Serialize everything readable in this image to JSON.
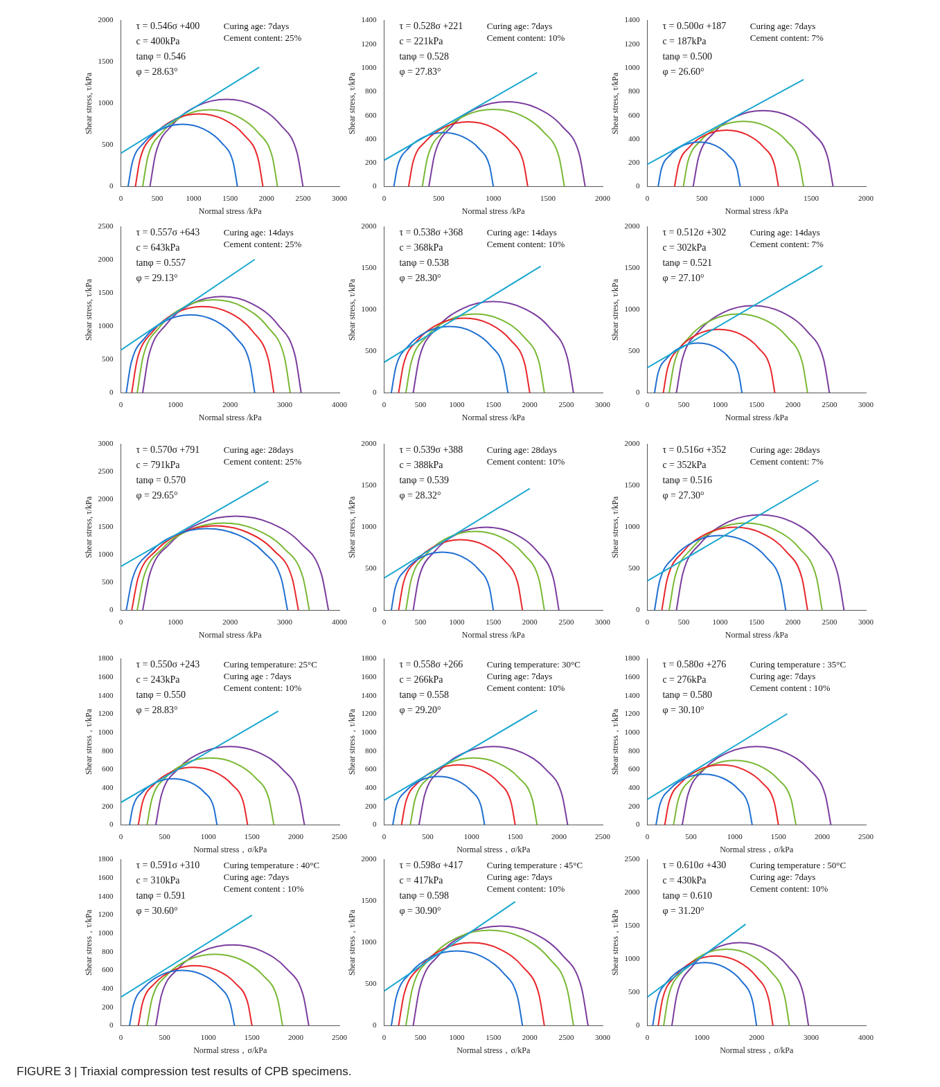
{
  "chart_data": [
    {
      "type": "line",
      "xlabel": "Normal stress /kPa",
      "ylabel": "Shear stress, τ/kPa",
      "xlim": [
        0,
        3000
      ],
      "xticks": [
        0,
        500,
        1000,
        1500,
        2000,
        2500,
        3000
      ],
      "ylim": [
        0,
        2000
      ],
      "yticks": [
        0,
        500,
        1000,
        1500,
        2000
      ],
      "annotations": [
        "τ = 0.546σ +400",
        "c = 400kPa",
        "tanφ = 0.546",
        "φ = 28.63°",
        "Curing age: 7days",
        "Cement content: 25%"
      ],
      "series": [
        {
          "color": "#1aa7cf",
          "x": [
            0,
            1900
          ],
          "values": [
            400,
            1437
          ]
        },
        {
          "color": "#1f6fd1",
          "x": [
            100,
            157,
            320,
            563,
            850,
            1137,
            1380,
            1543,
            1600
          ],
          "values": [
            0,
            287,
            530,
            693,
            750,
            693,
            530,
            287,
            0
          ]
        },
        {
          "color": "#e8262a",
          "x": [
            200,
            266,
            456,
            740,
            1075,
            1410,
            1694,
            1884,
            1950
          ],
          "values": [
            0,
            335,
            619,
            809,
            875,
            809,
            619,
            335,
            0
          ]
        },
        {
          "color": "#78b833",
          "x": [
            300,
            370,
            571,
            871,
            1225,
            1579,
            1879,
            2080,
            2150
          ],
          "values": [
            0,
            354,
            654,
            855,
            925,
            855,
            654,
            354,
            0
          ]
        },
        {
          "color": "#7a3c9e",
          "x": [
            400,
            480,
            708,
            1048,
            1450,
            1852,
            2192,
            2420,
            2500
          ],
          "values": [
            0,
            402,
            742,
            970,
            1050,
            970,
            742,
            402,
            0
          ]
        }
      ]
    },
    {
      "type": "line",
      "xlabel": "Normal stress /kPa",
      "ylabel": "Shear stress, τ/kPa",
      "xlim": [
        0,
        2000
      ],
      "xticks": [
        0,
        500,
        1000,
        1500,
        2000
      ],
      "ylim": [
        0,
        1400
      ],
      "yticks": [
        0,
        200,
        400,
        600,
        800,
        1000,
        1200,
        1400
      ],
      "annotations": [
        "τ = 0.528σ +221",
        "c = 221kPa",
        "tanφ = 0.528",
        "φ = 27.83°",
        "Curing age: 7days",
        "Cement content: 10%"
      ],
      "series": [
        {
          "color": "#1aa7cf",
          "x": [
            0,
            1400
          ],
          "values": [
            221,
            960
          ]
        },
        {
          "color": "#1f6fd1",
          "x": [
            90,
            125,
            223,
            371,
            545,
            719,
            867,
            965,
            1000
          ],
          "values": [
            0,
            174,
            322,
            420,
            455,
            420,
            322,
            174,
            0
          ]
        },
        {
          "color": "#e8262a",
          "x": [
            225,
            266,
            385,
            561,
            770,
            979,
            1155,
            1274,
            1315
          ],
          "values": [
            0,
            209,
            385,
            504,
            545,
            504,
            385,
            209,
            0
          ]
        },
        {
          "color": "#78b833",
          "x": [
            350,
            399,
            540,
            751,
            1000,
            1249,
            1460,
            1601,
            1650
          ],
          "values": [
            0,
            249,
            460,
            601,
            650,
            601,
            460,
            249,
            0
          ]
        },
        {
          "color": "#7a3c9e",
          "x": [
            410,
            464,
            619,
            851,
            1125,
            1399,
            1631,
            1786,
            1840
          ],
          "values": [
            0,
            274,
            506,
            661,
            715,
            661,
            506,
            274,
            0
          ]
        }
      ]
    },
    {
      "type": "line",
      "xlabel": "Normal stress /kPa",
      "ylabel": "Shear stress, τ/kPa",
      "xlim": [
        0,
        2000
      ],
      "xticks": [
        0,
        500,
        1000,
        1500,
        2000
      ],
      "ylim": [
        0,
        1400
      ],
      "yticks": [
        0,
        200,
        400,
        600,
        800,
        1000,
        1200,
        1400
      ],
      "annotations": [
        "τ = 0.500σ +187",
        "c = 187kPa",
        "tanφ = 0.500",
        "φ = 26.60°",
        "Curing age: 7days",
        "Cement content: 7%"
      ],
      "series": [
        {
          "color": "#1aa7cf",
          "x": [
            0,
            1430
          ],
          "values": [
            187,
            902
          ]
        },
        {
          "color": "#1f6fd1",
          "x": [
            100,
            128,
            210,
            331,
            475,
            619,
            740,
            822,
            850
          ],
          "values": [
            0,
            144,
            265,
            347,
            375,
            347,
            265,
            144,
            0
          ]
        },
        {
          "color": "#e8262a",
          "x": [
            250,
            286,
            389,
            543,
            725,
            907,
            1061,
            1164,
            1200
          ],
          "values": [
            0,
            182,
            336,
            439,
            475,
            439,
            336,
            182,
            0
          ]
        },
        {
          "color": "#78b833",
          "x": [
            330,
            372,
            491,
            669,
            880,
            1091,
            1269,
            1388,
            1430
          ],
          "values": [
            0,
            211,
            389,
            508,
            550,
            508,
            389,
            211,
            0
          ]
        },
        {
          "color": "#7a3c9e",
          "x": [
            420,
            469,
            608,
            815,
            1060,
            1305,
            1512,
            1651,
            1700
          ],
          "values": [
            0,
            245,
            452,
            591,
            640,
            591,
            452,
            245,
            0
          ]
        }
      ]
    },
    {
      "type": "line",
      "xlabel": "Normal stress /kPa",
      "ylabel": "Shear stress, τ/kPa",
      "xlim": [
        0,
        4000
      ],
      "xticks": [
        0,
        1000,
        2000,
        3000,
        4000
      ],
      "ylim": [
        0,
        2500
      ],
      "yticks": [
        0,
        500,
        1000,
        1500,
        2000,
        2500
      ],
      "annotations": [
        "τ = 0.557σ +643",
        "c = 643kPa",
        "tanφ = 0.557",
        "φ = 29.13°",
        "Curing age: 14days",
        "Cement content: 25%"
      ],
      "series": [
        {
          "color": "#1aa7cf",
          "x": [
            0,
            2450
          ],
          "values": [
            643,
            2008
          ]
        },
        {
          "color": "#1f6fd1",
          "x": [
            100,
            189,
            444,
            825,
            1275,
            1725,
            2106,
            2361,
            2450
          ],
          "values": [
            0,
            450,
            831,
            1086,
            1175,
            1086,
            831,
            450,
            0
          ]
        },
        {
          "color": "#e8262a",
          "x": [
            200,
            299,
            581,
            1002,
            1500,
            1998,
            2419,
            2701,
            2800
          ],
          "values": [
            0,
            498,
            919,
            1201,
            1300,
            1201,
            919,
            498,
            0
          ]
        },
        {
          "color": "#78b833",
          "x": [
            300,
            406,
            710,
            1164,
            1700,
            2236,
            2690,
            2994,
            3100
          ],
          "values": [
            0,
            536,
            990,
            1294,
            1400,
            1294,
            990,
            536,
            0
          ]
        },
        {
          "color": "#7a3c9e",
          "x": [
            400,
            510,
            825,
            1295,
            1850,
            2405,
            2875,
            3190,
            3300
          ],
          "values": [
            0,
            555,
            1025,
            1340,
            1450,
            1340,
            1025,
            555,
            0
          ]
        }
      ]
    },
    {
      "type": "line",
      "xlabel": "Normal stress /kPa",
      "ylabel": "Shear stress, τ/kPa",
      "xlim": [
        0,
        3000
      ],
      "xticks": [
        0,
        500,
        1000,
        1500,
        2000,
        2500,
        3000
      ],
      "ylim": [
        0,
        2000
      ],
      "yticks": [
        0,
        500,
        1000,
        1500,
        2000
      ],
      "annotations": [
        "τ = 0.538σ +368",
        "c = 368kPa",
        "tanφ = 0.538",
        "φ = 28.30°",
        "Curing age: 14days",
        "Cement content: 10%"
      ],
      "series": [
        {
          "color": "#1aa7cf",
          "x": [
            0,
            2150
          ],
          "values": [
            368,
            1525
          ]
        },
        {
          "color": "#1f6fd1",
          "x": [
            100,
            161,
            334,
            594,
            900,
            1206,
            1466,
            1639,
            1700
          ],
          "values": [
            0,
            306,
            566,
            739,
            800,
            739,
            566,
            306,
            0
          ]
        },
        {
          "color": "#e8262a",
          "x": [
            200,
            268,
            464,
            755,
            1100,
            1445,
            1736,
            1932,
            2000
          ],
          "values": [
            0,
            345,
            636,
            832,
            900,
            832,
            636,
            345,
            0
          ]
        },
        {
          "color": "#78b833",
          "x": [
            300,
            372,
            578,
            886,
            1250,
            1614,
            1922,
            2128,
            2200
          ],
          "values": [
            0,
            364,
            672,
            878,
            950,
            878,
            672,
            364,
            0
          ]
        },
        {
          "color": "#7a3c9e",
          "x": [
            400,
            484,
            722,
            1079,
            1500,
            1921,
            2278,
            2516,
            2600
          ],
          "values": [
            0,
            421,
            778,
            1016,
            1100,
            1016,
            778,
            421,
            0
          ]
        }
      ]
    },
    {
      "type": "line",
      "xlabel": "Normal stress /kPa",
      "ylabel": "Shear stress, τ/kPa",
      "xlim": [
        0,
        3000
      ],
      "xticks": [
        0,
        500,
        1000,
        1500,
        2000,
        2500,
        3000
      ],
      "ylim": [
        0,
        2000
      ],
      "yticks": [
        0,
        500,
        1000,
        1500,
        2000
      ],
      "annotations": [
        "τ = 0.512σ +302",
        "c = 302kPa",
        "tanφ = 0.521",
        "φ = 27.10°",
        "Curing age: 14days",
        "Cement content: 7%"
      ],
      "series": [
        {
          "color": "#1aa7cf",
          "x": [
            0,
            2400
          ],
          "values": [
            302,
            1531
          ]
        },
        {
          "color": "#1f6fd1",
          "x": [
            100,
            146,
            276,
            470,
            700,
            930,
            1124,
            1254,
            1300
          ],
          "values": [
            0,
            230,
            424,
            554,
            600,
            554,
            424,
            230,
            0
          ]
        },
        {
          "color": "#e8262a",
          "x": [
            220,
            278,
            444,
            692,
            985,
            1278,
            1526,
            1692,
            1750
          ],
          "values": [
            0,
            293,
            541,
            707,
            765,
            707,
            541,
            293,
            0
          ]
        },
        {
          "color": "#78b833",
          "x": [
            300,
            372,
            578,
            886,
            1250,
            1614,
            1922,
            2128,
            2200
          ],
          "values": [
            0,
            364,
            672,
            878,
            950,
            878,
            672,
            364,
            0
          ]
        },
        {
          "color": "#7a3c9e",
          "x": [
            400,
            480,
            708,
            1048,
            1450,
            1852,
            2192,
            2420,
            2500
          ],
          "values": [
            0,
            402,
            742,
            970,
            1050,
            970,
            742,
            402,
            0
          ]
        }
      ]
    },
    {
      "type": "line",
      "xlabel": "Normal stress /kPa",
      "ylabel": "Shear stress, τ/kPa",
      "xlim": [
        0,
        4000
      ],
      "xticks": [
        0,
        1000,
        2000,
        3000,
        4000
      ],
      "ylim": [
        0,
        3000
      ],
      "yticks": [
        0,
        500,
        1000,
        1500,
        2000,
        2500,
        3000
      ],
      "annotations": [
        "τ = 0.570σ +791",
        "c = 791kPa",
        "tanφ = 0.570",
        "φ = 29.65°",
        "Curing age: 28days",
        "Cement content: 25%"
      ],
      "series": [
        {
          "color": "#1aa7cf",
          "x": [
            0,
            2700
          ],
          "values": [
            791,
            2330
          ]
        },
        {
          "color": "#1f6fd1",
          "x": [
            100,
            212,
            532,
            1010,
            1575,
            2140,
            2618,
            2938,
            3050
          ],
          "values": [
            0,
            565,
            1043,
            1363,
            1475,
            1363,
            1043,
            565,
            0
          ]
        },
        {
          "color": "#e8262a",
          "x": [
            200,
            316,
            647,
            1141,
            1725,
            2309,
            2803,
            3134,
            3250
          ],
          "values": [
            0,
            584,
            1078,
            1409,
            1525,
            1409,
            1078,
            584,
            0
          ]
        },
        {
          "color": "#78b833",
          "x": [
            300,
            420,
            761,
            1272,
            1875,
            2478,
            2989,
            3330,
            3450
          ],
          "values": [
            0,
            603,
            1114,
            1455,
            1575,
            1455,
            1114,
            603,
            0
          ]
        },
        {
          "color": "#7a3c9e",
          "x": [
            400,
            529,
            898,
            1449,
            2100,
            2751,
            3302,
            3671,
            3800
          ],
          "values": [
            0,
            651,
            1202,
            1571,
            1700,
            1571,
            1202,
            651,
            0
          ]
        }
      ]
    },
    {
      "type": "line",
      "xlabel": "Normal stress /kPa",
      "ylabel": "Shear stress, τ/kPa",
      "xlim": [
        0,
        3000
      ],
      "xticks": [
        0,
        500,
        1000,
        1500,
        2000,
        2500,
        3000
      ],
      "ylim": [
        0,
        2000
      ],
      "yticks": [
        0,
        500,
        1000,
        1500,
        2000
      ],
      "annotations": [
        "τ = 0.539σ +388",
        "c = 388kPa",
        "tanφ = 0.539",
        "φ = 28.32°",
        "Curing age: 28days",
        "Cement content: 10%"
      ],
      "series": [
        {
          "color": "#1aa7cf",
          "x": [
            0,
            2000
          ],
          "values": [
            388,
            1466
          ]
        },
        {
          "color": "#1f6fd1",
          "x": [
            100,
            153,
            305,
            532,
            800,
            1068,
            1295,
            1447,
            1500
          ],
          "values": [
            0,
            268,
            495,
            647,
            700,
            647,
            495,
            268,
            0
          ]
        },
        {
          "color": "#e8262a",
          "x": [
            200,
            265,
            449,
            724,
            1050,
            1376,
            1651,
            1835,
            1900
          ],
          "values": [
            0,
            326,
            601,
            785,
            850,
            785,
            601,
            326,
            0
          ]
        },
        {
          "color": "#78b833",
          "x": [
            300,
            372,
            578,
            886,
            1250,
            1614,
            1922,
            2128,
            2200
          ],
          "values": [
            0,
            364,
            672,
            878,
            950,
            878,
            672,
            364,
            0
          ]
        },
        {
          "color": "#7a3c9e",
          "x": [
            400,
            476,
            693,
            1017,
            1400,
            1783,
            2107,
            2324,
            2400
          ],
          "values": [
            0,
            383,
            707,
            924,
            1000,
            924,
            707,
            383,
            0
          ]
        }
      ]
    },
    {
      "type": "line",
      "xlabel": "Normal stress /kPa",
      "ylabel": "Shear stress, τ/kPa",
      "xlim": [
        0,
        3000
      ],
      "xticks": [
        0,
        500,
        1000,
        1500,
        2000,
        2500,
        3000
      ],
      "ylim": [
        0,
        2000
      ],
      "yticks": [
        0,
        500,
        1000,
        1500,
        2000
      ],
      "annotations": [
        "τ = 0.516σ +352",
        "c = 352kPa",
        "tanφ = 0.516",
        "φ = 27.30°",
        "Curing age: 28days",
        "Cement content: 7%"
      ],
      "series": [
        {
          "color": "#1aa7cf",
          "x": [
            0,
            2350
          ],
          "values": [
            352,
            1565
          ]
        },
        {
          "color": "#1f6fd1",
          "x": [
            100,
            168,
            364,
            655,
            1000,
            1345,
            1636,
            1832,
            1900
          ],
          "values": [
            0,
            345,
            636,
            832,
            900,
            832,
            636,
            345,
            0
          ]
        },
        {
          "color": "#e8262a",
          "x": [
            200,
            276,
            493,
            817,
            1200,
            1583,
            1907,
            2124,
            2200
          ],
          "values": [
            0,
            383,
            707,
            924,
            1000,
            924,
            707,
            383,
            0
          ]
        },
        {
          "color": "#78b833",
          "x": [
            300,
            380,
            608,
            948,
            1350,
            1752,
            2092,
            2320,
            2400
          ],
          "values": [
            0,
            402,
            742,
            970,
            1050,
            970,
            742,
            402,
            0
          ]
        },
        {
          "color": "#7a3c9e",
          "x": [
            400,
            487,
            737,
            1110,
            1550,
            1990,
            2363,
            2613,
            2700
          ],
          "values": [
            0,
            440,
            813,
            1063,
            1150,
            1063,
            813,
            440,
            0
          ]
        }
      ]
    },
    {
      "type": "line",
      "xlabel": "Normal stress，σ/kPa",
      "ylabel": "Shear stress，τ/kPa",
      "xlim": [
        0,
        2500
      ],
      "xticks": [
        0,
        500,
        1000,
        1500,
        2000,
        2500
      ],
      "ylim": [
        0,
        1800
      ],
      "yticks": [
        0,
        200,
        400,
        600,
        800,
        1000,
        1200,
        1400,
        1600,
        1800
      ],
      "annotations": [
        "τ = 0.550σ +243",
        "c = 243kPa",
        "tanφ = 0.550",
        "φ = 28.83°",
        "Curing temperature: 25°C",
        "Curing age : 7days",
        "Cement content: 10%"
      ],
      "series": [
        {
          "color": "#1aa7cf",
          "x": [
            0,
            1800
          ],
          "values": [
            243,
            1233
          ]
        },
        {
          "color": "#1f6fd1",
          "x": [
            100,
            138,
            246,
            409,
            600,
            792,
            954,
            1062,
            1100
          ],
          "values": [
            0,
            192,
            354,
            462,
            500,
            462,
            354,
            192,
            0
          ]
        },
        {
          "color": "#e8262a",
          "x": [
            200,
            247,
            383,
            586,
            825,
            1064,
            1267,
            1403,
            1450
          ],
          "values": [
            0,
            239,
            442,
            578,
            625,
            578,
            442,
            239,
            0
          ]
        },
        {
          "color": "#78b833",
          "x": [
            300,
            355,
            512,
            747,
            1025,
            1303,
            1538,
            1695,
            1750
          ],
          "values": [
            0,
            278,
            513,
            670,
            725,
            670,
            513,
            278,
            0
          ]
        },
        {
          "color": "#7a3c9e",
          "x": [
            400,
            465,
            649,
            924,
            1250,
            1576,
            1851,
            2035,
            2100
          ],
          "values": [
            0,
            326,
            601,
            785,
            850,
            785,
            601,
            326,
            0
          ]
        }
      ]
    },
    {
      "type": "line",
      "xlabel": "Normal stress，σ/kPa",
      "ylabel": "Shear stress，τ/kPa",
      "xlim": [
        0,
        2500
      ],
      "xticks": [
        0,
        500,
        1000,
        1500,
        2000,
        2500
      ],
      "ylim": [
        0,
        1800
      ],
      "yticks": [
        0,
        200,
        400,
        600,
        800,
        1000,
        1200,
        1400,
        1600,
        1800
      ],
      "annotations": [
        "τ = 0.558σ +266",
        "c = 266kPa",
        "tanφ = 0.558",
        "φ = 29.20°",
        "Curing temperature: 30°C",
        "Curing age: 7days",
        "Cement content: 10%"
      ],
      "series": [
        {
          "color": "#1aa7cf",
          "x": [
            0,
            1750
          ],
          "values": [
            266,
            1243
          ]
        },
        {
          "color": "#1f6fd1",
          "x": [
            100,
            140,
            254,
            424,
            625,
            826,
            996,
            1110,
            1150
          ],
          "values": [
            0,
            201,
            371,
            485,
            525,
            485,
            371,
            201,
            0
          ]
        },
        {
          "color": "#e8262a",
          "x": [
            200,
            249,
            390,
            601,
            850,
            1099,
            1310,
            1451,
            1500
          ],
          "values": [
            0,
            249,
            460,
            601,
            650,
            601,
            460,
            249,
            0
          ]
        },
        {
          "color": "#78b833",
          "x": [
            300,
            355,
            512,
            747,
            1025,
            1303,
            1538,
            1695,
            1750
          ],
          "values": [
            0,
            278,
            513,
            670,
            725,
            670,
            513,
            278,
            0
          ]
        },
        {
          "color": "#7a3c9e",
          "x": [
            400,
            465,
            649,
            924,
            1250,
            1576,
            1851,
            2035,
            2100
          ],
          "values": [
            0,
            326,
            601,
            785,
            850,
            785,
            601,
            326,
            0
          ]
        }
      ]
    },
    {
      "type": "line",
      "xlabel": "Normal stress，σ/kPa",
      "ylabel": "Shear stress，τ/kPa",
      "xlim": [
        0,
        2500
      ],
      "xticks": [
        0,
        500,
        1000,
        1500,
        2000,
        2500
      ],
      "ylim": [
        0,
        1800
      ],
      "yticks": [
        0,
        200,
        400,
        600,
        800,
        1000,
        1200,
        1400,
        1600,
        1800
      ],
      "annotations": [
        "τ = 0.580σ +276",
        "c = 276kPa",
        "tanφ = 0.580",
        "φ = 30.10°",
        "Curing temperature : 35°C",
        "Curing age: 7days",
        "Cement content : 10%"
      ],
      "series": [
        {
          "color": "#1aa7cf",
          "x": [
            0,
            1600
          ],
          "values": [
            276,
            1204
          ]
        },
        {
          "color": "#1f6fd1",
          "x": [
            100,
            142,
            261,
            439,
            650,
            861,
            1039,
            1158,
            1200
          ],
          "values": [
            0,
            211,
            389,
            508,
            550,
            508,
            389,
            211,
            0
          ]
        },
        {
          "color": "#e8262a",
          "x": [
            200,
            249,
            390,
            601,
            850,
            1099,
            1310,
            1451,
            1500
          ],
          "values": [
            0,
            249,
            460,
            601,
            650,
            601,
            460,
            249,
            0
          ]
        },
        {
          "color": "#78b833",
          "x": [
            300,
            353,
            505,
            732,
            1000,
            1268,
            1495,
            1647,
            1700
          ],
          "values": [
            0,
            268,
            495,
            647,
            700,
            647,
            495,
            268,
            0
          ]
        },
        {
          "color": "#7a3c9e",
          "x": [
            400,
            465,
            649,
            924,
            1250,
            1576,
            1851,
            2035,
            2100
          ],
          "values": [
            0,
            326,
            601,
            785,
            850,
            785,
            601,
            326,
            0
          ]
        }
      ]
    },
    {
      "type": "line",
      "xlabel": "Normal stress，σ/kPa",
      "ylabel": "Shear stress，τ/kPa",
      "xlim": [
        0,
        2500
      ],
      "xticks": [
        0,
        500,
        1000,
        1500,
        2000,
        2500
      ],
      "ylim": [
        0,
        1800
      ],
      "yticks": [
        0,
        200,
        400,
        600,
        800,
        1000,
        1200,
        1400,
        1600,
        1800
      ],
      "annotations": [
        "τ = 0.591σ +310",
        "c = 310kPa",
        "tanφ = 0.591",
        "φ = 30.60°",
        "Curing temperature : 40°C",
        "Curing age: 7days",
        "Cement content : 10%"
      ],
      "series": [
        {
          "color": "#1aa7cf",
          "x": [
            0,
            1500
          ],
          "values": [
            310,
            1197
          ]
        },
        {
          "color": "#1f6fd1",
          "x": [
            100,
            146,
            276,
            470,
            700,
            930,
            1124,
            1254,
            1300
          ],
          "values": [
            0,
            230,
            424,
            554,
            600,
            554,
            424,
            230,
            0
          ]
        },
        {
          "color": "#e8262a",
          "x": [
            200,
            249,
            390,
            601,
            850,
            1099,
            1310,
            1451,
            1500
          ],
          "values": [
            0,
            249,
            460,
            601,
            650,
            601,
            460,
            249,
            0
          ]
        },
        {
          "color": "#78b833",
          "x": [
            300,
            359,
            527,
            778,
            1075,
            1372,
            1623,
            1791,
            1850
          ],
          "values": [
            0,
            297,
            548,
            716,
            775,
            716,
            548,
            297,
            0
          ]
        },
        {
          "color": "#7a3c9e",
          "x": [
            400,
            466,
            656,
            940,
            1275,
            1610,
            1894,
            2084,
            2150
          ],
          "values": [
            0,
            335,
            619,
            809,
            875,
            809,
            619,
            335,
            0
          ]
        }
      ]
    },
    {
      "type": "line",
      "xlabel": "Normal stress，σ/kPa",
      "ylabel": "Shear stress，τ/kPa",
      "xlim": [
        0,
        3000
      ],
      "xticks": [
        0,
        500,
        1000,
        1500,
        2000,
        2500,
        3000
      ],
      "ylim": [
        0,
        2000
      ],
      "yticks": [
        0,
        500,
        1000,
        1500,
        2000
      ],
      "annotations": [
        "τ = 0.598σ +417",
        "c = 417kPa",
        "tanφ = 0.598",
        "φ = 30.90°",
        "Curing temperature : 45°C",
        "Curing age: 7days",
        "Cement content: 10%"
      ],
      "series": [
        {
          "color": "#1aa7cf",
          "x": [
            0,
            1800
          ],
          "values": [
            417,
            1493
          ]
        },
        {
          "color": "#1f6fd1",
          "x": [
            100,
            168,
            364,
            655,
            1000,
            1345,
            1636,
            1832,
            1900
          ],
          "values": [
            0,
            345,
            636,
            832,
            900,
            832,
            636,
            345,
            0
          ]
        },
        {
          "color": "#e8262a",
          "x": [
            200,
            276,
            493,
            817,
            1200,
            1583,
            1907,
            2124,
            2200
          ],
          "values": [
            0,
            383,
            707,
            924,
            1000,
            924,
            707,
            383,
            0
          ]
        },
        {
          "color": "#78b833",
          "x": [
            300,
            387,
            637,
            1010,
            1450,
            1890,
            2263,
            2513,
            2600
          ],
          "values": [
            0,
            440,
            813,
            1063,
            1150,
            1063,
            813,
            440,
            0
          ]
        },
        {
          "color": "#7a3c9e",
          "x": [
            400,
            491,
            752,
            1140,
            1600,
            2060,
            2448,
            2709,
            2800
          ],
          "values": [
            0,
            460,
            848,
            1109,
            1200,
            1109,
            848,
            460,
            0
          ]
        }
      ]
    },
    {
      "type": "line",
      "xlabel": "Normal stress，σ/kPa",
      "ylabel": "Shear stress，τ/kPa",
      "xlim": [
        0,
        4000
      ],
      "xticks": [
        0,
        1000,
        2000,
        3000,
        4000
      ],
      "ylim": [
        0,
        2500
      ],
      "yticks": [
        0,
        500,
        1000,
        1500,
        2000,
        2500
      ],
      "annotations": [
        "τ = 0.610σ +430",
        "c = 430kPa",
        "tanφ = 0.610",
        "φ = 31.20°",
        "Curing temperature : 50°C",
        "Curing age: 7days",
        "Cement content: 10%"
      ],
      "series": [
        {
          "color": "#1aa7cf",
          "x": [
            0,
            1800
          ],
          "values": [
            430,
            1528
          ]
        },
        {
          "color": "#1f6fd1",
          "x": [
            100,
            172,
            378,
            686,
            1050,
            1414,
            1722,
            1928,
            2000
          ],
          "values": [
            0,
            364,
            672,
            878,
            950,
            878,
            672,
            364,
            0
          ]
        },
        {
          "color": "#e8262a",
          "x": [
            200,
            280,
            508,
            848,
            1250,
            1652,
            1992,
            2220,
            2300
          ],
          "values": [
            0,
            402,
            742,
            970,
            1050,
            970,
            742,
            402,
            0
          ]
        },
        {
          "color": "#78b833",
          "x": [
            300,
            387,
            637,
            1010,
            1450,
            1890,
            2263,
            2513,
            2600
          ],
          "values": [
            0,
            440,
            813,
            1063,
            1150,
            1063,
            813,
            440,
            0
          ]
        },
        {
          "color": "#7a3c9e",
          "x": [
            450,
            545,
            816,
            1221,
            1700,
            2179,
            2584,
            2855,
            2950
          ],
          "values": [
            0,
            479,
            884,
            1155,
            1250,
            1155,
            884,
            479,
            0
          ]
        }
      ]
    },
    {
      "type": "other",
      "annotations": [
        "FIGURE 3 | Triaxial compression test results of CPB specimens."
      ]
    }
  ]
}
